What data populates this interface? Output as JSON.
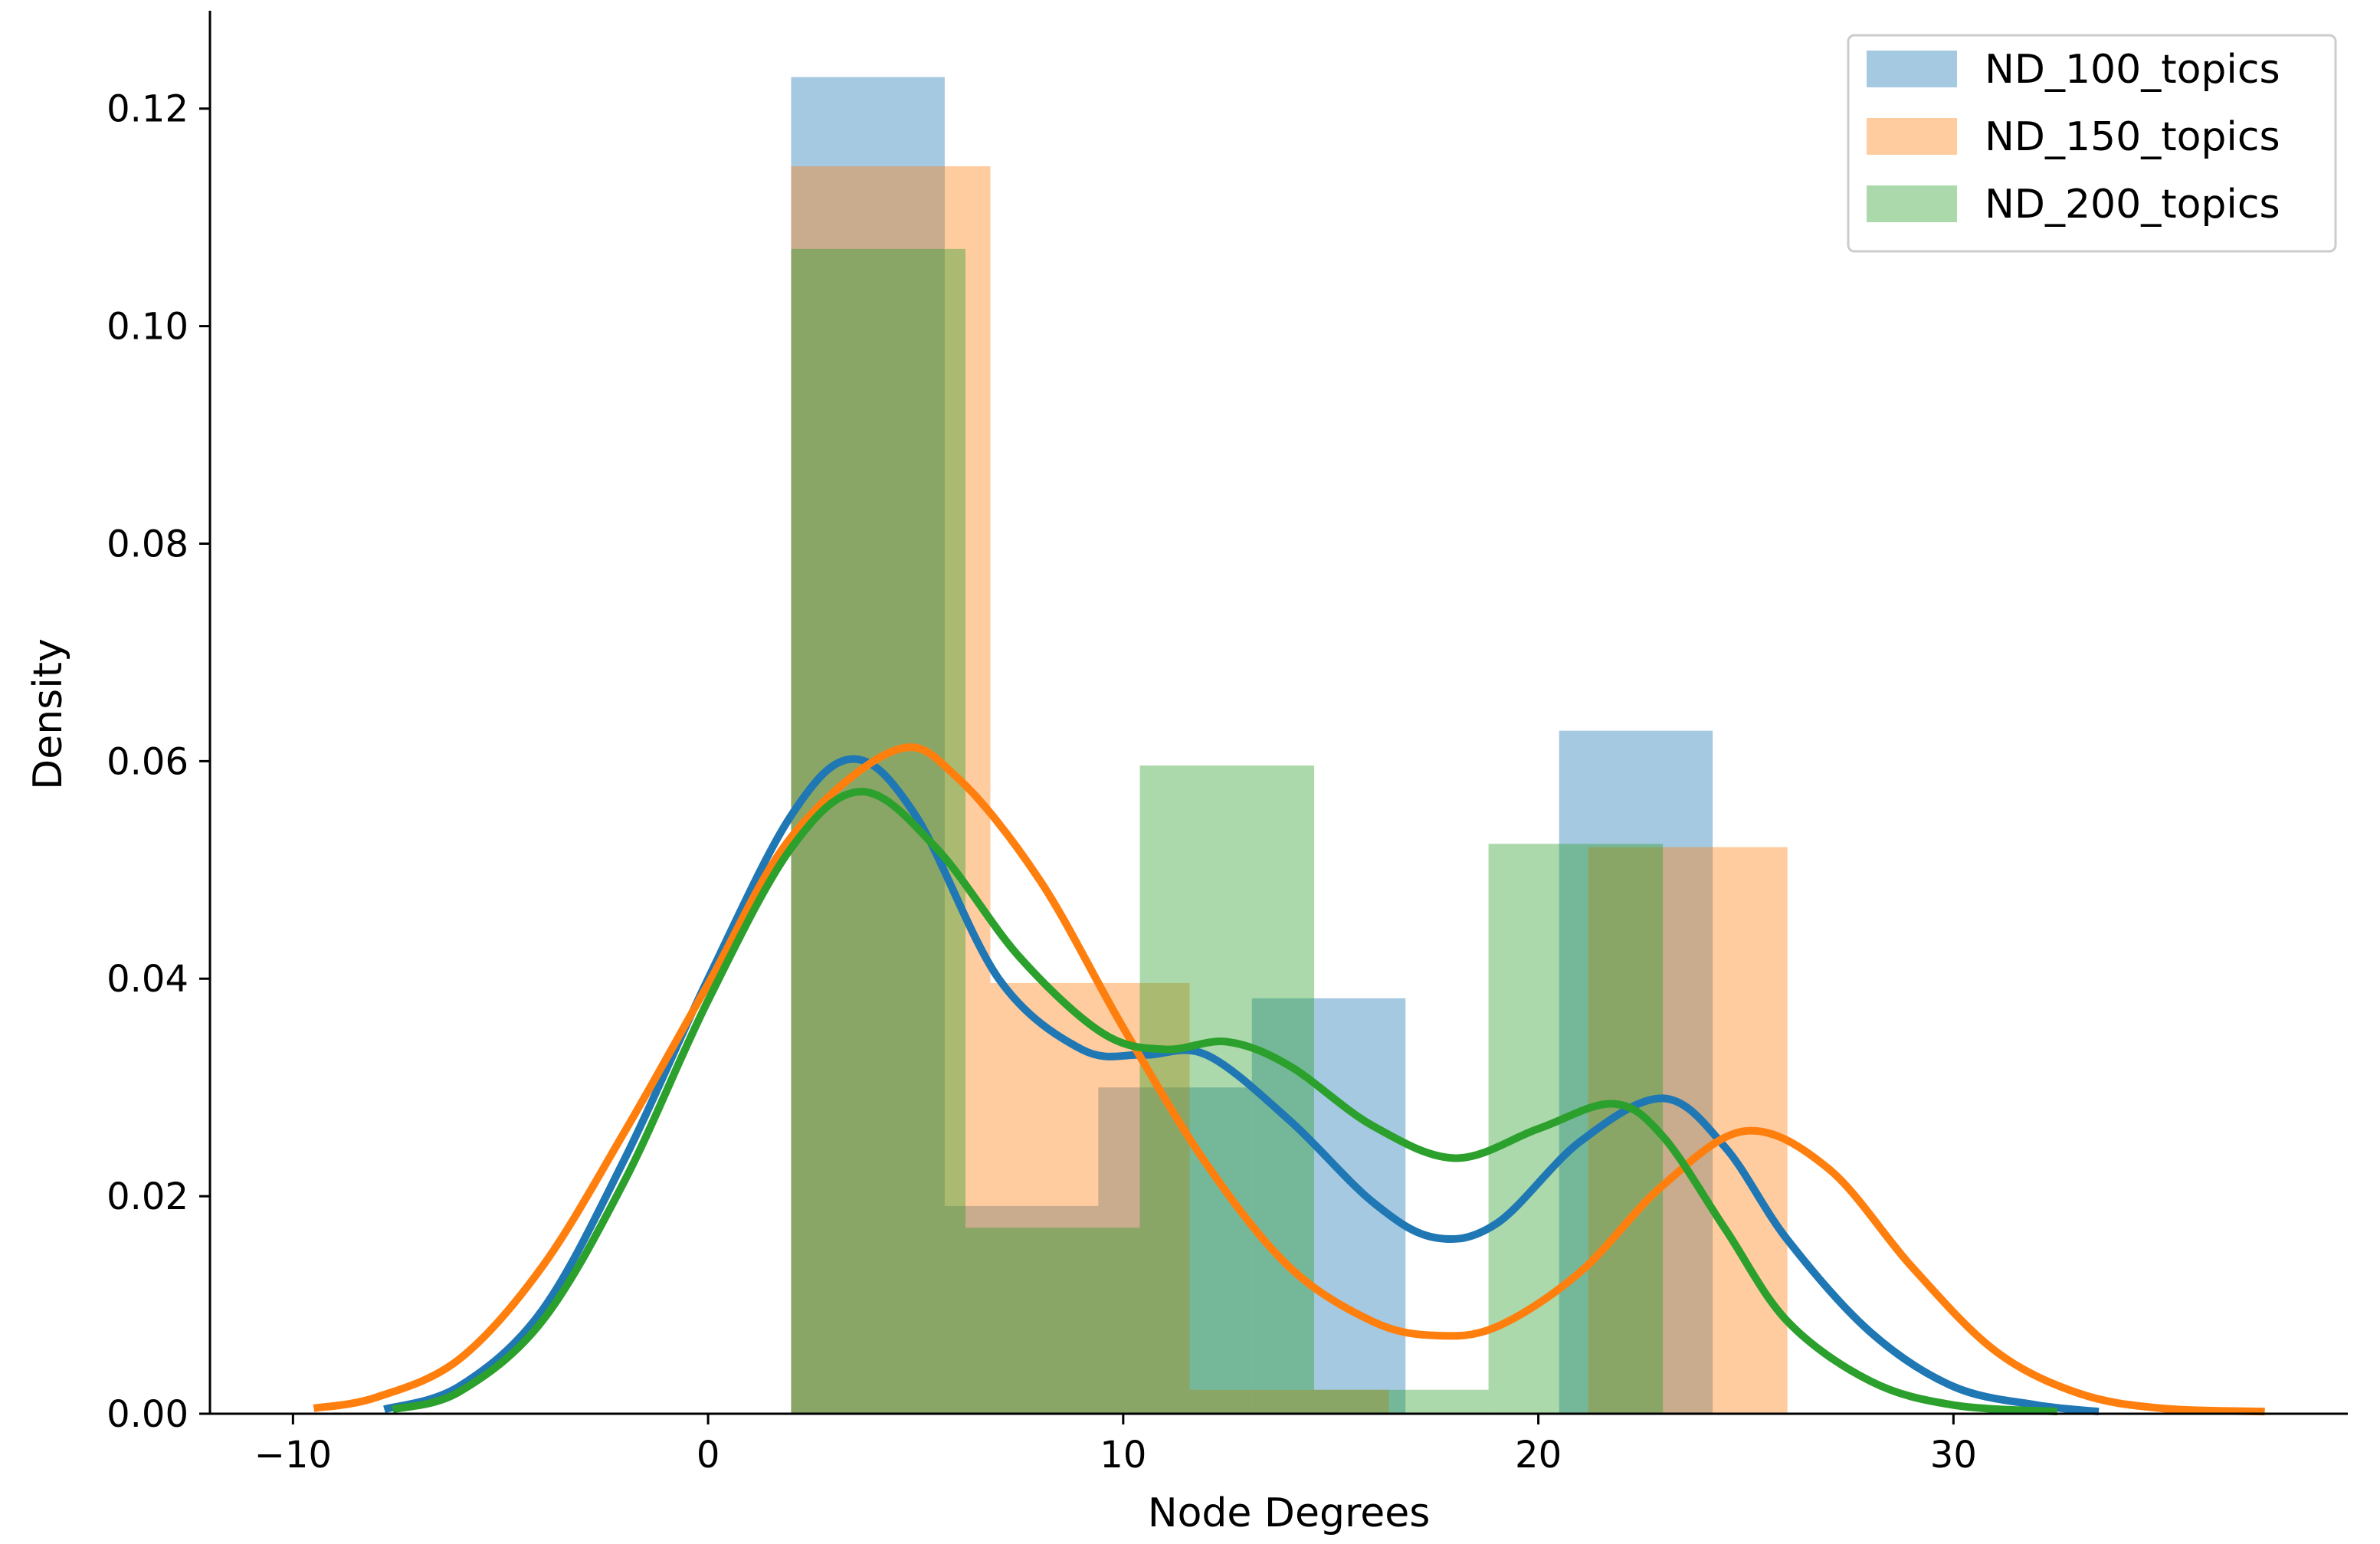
{
  "chart_data": {
    "type": "histogram-kde",
    "title": "",
    "xlabel": "Node Degrees",
    "ylabel": "Density",
    "xlim": [
      -12,
      39.5
    ],
    "ylim": [
      0,
      0.129
    ],
    "xticks": [
      -10,
      0,
      10,
      20,
      30
    ],
    "xtick_labels": [
      "−10",
      "0",
      "10",
      "20",
      "30"
    ],
    "yticks": [
      0,
      0.02,
      0.04,
      0.06,
      0.08,
      0.1,
      0.12
    ],
    "ytick_labels": [
      "0.00",
      "0.02",
      "0.04",
      "0.06",
      "0.08",
      "0.10",
      "0.12"
    ],
    "legend_position": "top-right",
    "series": [
      {
        "name": "ND_100_topics",
        "color": "#1f77b4",
        "bins": [
          {
            "x0": 2.0,
            "x1": 5.7,
            "density": 0.1229
          },
          {
            "x0": 5.7,
            "x1": 9.4,
            "density": 0.0191
          },
          {
            "x0": 9.4,
            "x1": 13.1,
            "density": 0.03
          },
          {
            "x0": 13.1,
            "x1": 16.8,
            "density": 0.0382
          },
          {
            "x0": 16.8,
            "x1": 20.5,
            "density": 0.0
          },
          {
            "x0": 20.5,
            "x1": 24.2,
            "density": 0.0628
          }
        ],
        "kde": [
          [
            -7.8,
            0.0004
          ],
          [
            -6,
            0.0025
          ],
          [
            -4,
            0.0095
          ],
          [
            -2,
            0.0235
          ],
          [
            0,
            0.04
          ],
          [
            2,
            0.055
          ],
          [
            3.5,
            0.0602
          ],
          [
            5,
            0.055
          ],
          [
            7,
            0.04
          ],
          [
            9,
            0.0335
          ],
          [
            10.5,
            0.033
          ],
          [
            12,
            0.033
          ],
          [
            14,
            0.027
          ],
          [
            16,
            0.0195
          ],
          [
            17.5,
            0.0162
          ],
          [
            19,
            0.0175
          ],
          [
            21,
            0.025
          ],
          [
            23,
            0.029
          ],
          [
            24.5,
            0.0245
          ],
          [
            26,
            0.016
          ],
          [
            28,
            0.0075
          ],
          [
            30,
            0.0025
          ],
          [
            32,
            0.0008
          ],
          [
            33.5,
            0.0002
          ]
        ]
      },
      {
        "name": "ND_150_topics",
        "color": "#ff7f0e",
        "bins": [
          {
            "x0": 2.0,
            "x1": 6.8,
            "density": 0.1147
          },
          {
            "x0": 6.8,
            "x1": 11.6,
            "density": 0.0396
          },
          {
            "x0": 11.6,
            "x1": 16.4,
            "density": 0.0022
          },
          {
            "x0": 16.4,
            "x1": 21.2,
            "density": 0.0
          },
          {
            "x0": 21.2,
            "x1": 26.0,
            "density": 0.0521
          }
        ],
        "kde": [
          [
            -9.5,
            0.0005
          ],
          [
            -8,
            0.0015
          ],
          [
            -6,
            0.005
          ],
          [
            -4,
            0.0135
          ],
          [
            -2,
            0.026
          ],
          [
            0,
            0.0395
          ],
          [
            2,
            0.053
          ],
          [
            4.5,
            0.061
          ],
          [
            6,
            0.0585
          ],
          [
            8,
            0.049
          ],
          [
            10,
            0.0355
          ],
          [
            12,
            0.023
          ],
          [
            14,
            0.0135
          ],
          [
            16,
            0.0085
          ],
          [
            17.5,
            0.0072
          ],
          [
            19,
            0.008
          ],
          [
            21,
            0.013
          ],
          [
            23,
            0.021
          ],
          [
            25,
            0.026
          ],
          [
            27,
            0.0225
          ],
          [
            29,
            0.0135
          ],
          [
            31,
            0.0058
          ],
          [
            33,
            0.0019
          ],
          [
            35,
            0.0005
          ],
          [
            37.5,
            0.0002
          ]
        ]
      },
      {
        "name": "ND_200_topics",
        "color": "#2ca02c",
        "bins": [
          {
            "x0": 2.0,
            "x1": 6.2,
            "density": 0.1071
          },
          {
            "x0": 6.2,
            "x1": 10.4,
            "density": 0.0171
          },
          {
            "x0": 10.4,
            "x1": 14.6,
            "density": 0.0596
          },
          {
            "x0": 14.6,
            "x1": 18.8,
            "density": 0.0022
          },
          {
            "x0": 18.8,
            "x1": 23.0,
            "density": 0.0524
          }
        ],
        "kde": [
          [
            -7.6,
            0.0004
          ],
          [
            -6,
            0.002
          ],
          [
            -4,
            0.0085
          ],
          [
            -2,
            0.0215
          ],
          [
            0,
            0.038
          ],
          [
            2,
            0.052
          ],
          [
            3.7,
            0.0572
          ],
          [
            5.5,
            0.052
          ],
          [
            7.5,
            0.042
          ],
          [
            9.5,
            0.035
          ],
          [
            11,
            0.0335
          ],
          [
            12.5,
            0.0342
          ],
          [
            14,
            0.032
          ],
          [
            16,
            0.0265
          ],
          [
            18,
            0.0235
          ],
          [
            20,
            0.0262
          ],
          [
            21.8,
            0.0285
          ],
          [
            23,
            0.0255
          ],
          [
            24.5,
            0.017
          ],
          [
            26,
            0.0085
          ],
          [
            28,
            0.003
          ],
          [
            30,
            0.0008
          ],
          [
            32.5,
            0.0002
          ]
        ]
      }
    ]
  }
}
